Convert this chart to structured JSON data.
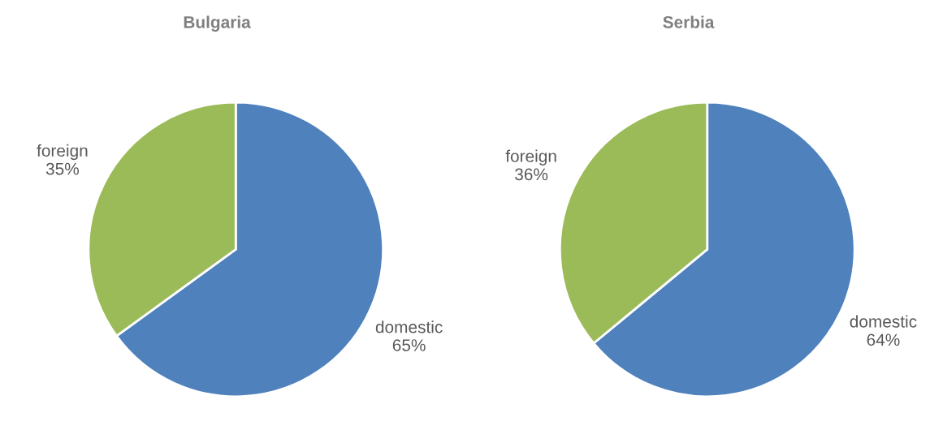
{
  "chart_data": [
    {
      "type": "pie",
      "title": "Bulgaria",
      "categories": [
        "domestic",
        "foreign"
      ],
      "values": [
        65,
        35
      ],
      "colors": [
        "#4f81bd",
        "#9bbb59"
      ],
      "value_labels": [
        "65%",
        "35%"
      ]
    },
    {
      "type": "pie",
      "title": "Serbia",
      "categories": [
        "domestic",
        "foreign"
      ],
      "values": [
        64,
        36
      ],
      "colors": [
        "#4f81bd",
        "#9bbb59"
      ],
      "value_labels": [
        "64%",
        "36%"
      ]
    }
  ]
}
